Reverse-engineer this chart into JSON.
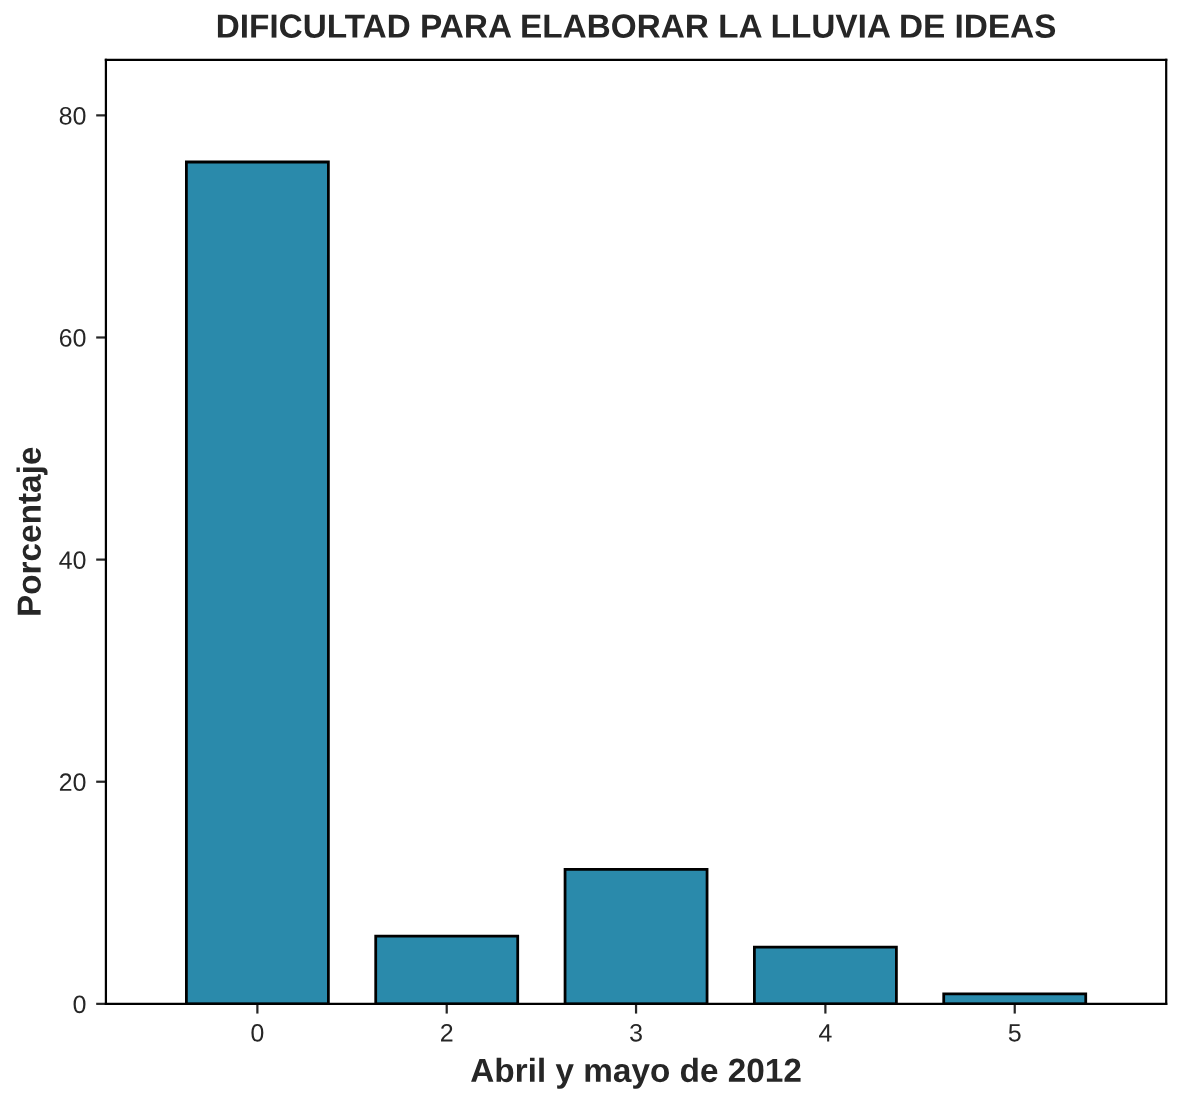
{
  "chart_data": {
    "type": "bar",
    "title": "DIFICULTAD PARA ELABORAR LA LLUVIA DE IDEAS",
    "xlabel": "Abril y mayo de 2012",
    "ylabel": "Porcentaje",
    "categories": [
      "0",
      "2",
      "3",
      "4",
      "5"
    ],
    "values": [
      75.8,
      6.1,
      12.1,
      5.1,
      0.9
    ],
    "color": "#2a8aab",
    "ylim": [
      0,
      85
    ],
    "yticks": [
      0,
      20,
      40,
      60,
      80
    ],
    "grid": false,
    "legend": false
  }
}
